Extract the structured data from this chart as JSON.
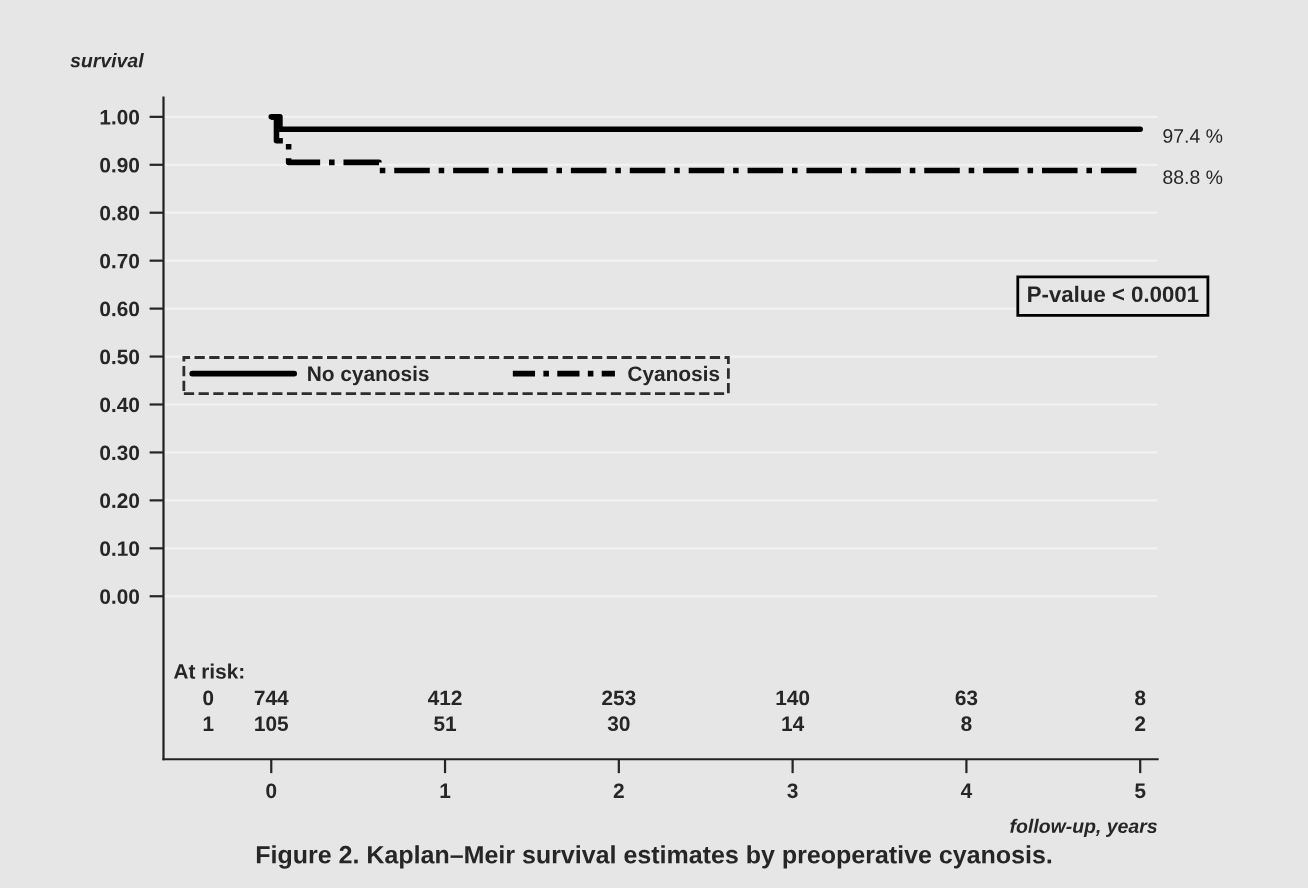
{
  "chart_data": {
    "type": "step",
    "title": "Figure 2. Kaplan–Meir survival estimates by preoperative cyanosis.",
    "xlabel": "follow-up, years",
    "ylabel": "survival",
    "series": [
      {
        "name": "No cyanosis",
        "color": "#000000",
        "line_style": "solid",
        "x": [
          0,
          0.05,
          5
        ],
        "values": [
          1.0,
          0.974,
          0.974
        ],
        "value_labels": [
          null,
          null,
          "97.4 %"
        ]
      },
      {
        "name": "Cyanosis",
        "color": "#000000",
        "line_style": "dashdot",
        "x": [
          0,
          0.03,
          0.1,
          0.62,
          5
        ],
        "values": [
          1.0,
          0.95,
          0.905,
          0.888,
          0.888
        ],
        "value_labels": [
          null,
          null,
          null,
          null,
          "88.8 %"
        ]
      }
    ],
    "xlim": [
      -0.62,
      5.1
    ],
    "xticks": [
      0,
      1,
      2,
      3,
      4,
      5
    ],
    "ylim": [
      -0.34,
      1.04
    ],
    "yticks": [
      {
        "value": 0,
        "label": "0.00"
      },
      {
        "value": 0.1,
        "label": "0.10"
      },
      {
        "value": 0.2,
        "label": "0.20"
      },
      {
        "value": 0.3,
        "label": "0.30"
      },
      {
        "value": 0.4,
        "label": "0.40"
      },
      {
        "value": 0.5,
        "label": "0.50"
      },
      {
        "value": 0.6,
        "label": "0.60"
      },
      {
        "value": 0.7,
        "label": "0.70"
      },
      {
        "value": 0.8,
        "label": "0.80"
      },
      {
        "value": 0.9,
        "label": "0.90"
      },
      {
        "value": 1.0,
        "label": "1.00"
      }
    ],
    "grid": "y",
    "legend": "left",
    "annotations": [
      "P-value < 0.0001",
      "At risk:",
      "0",
      "744",
      "412",
      "253",
      "140",
      "63",
      "8",
      "1",
      "105",
      "51",
      "30",
      "14",
      "8",
      "2"
    ]
  }
}
